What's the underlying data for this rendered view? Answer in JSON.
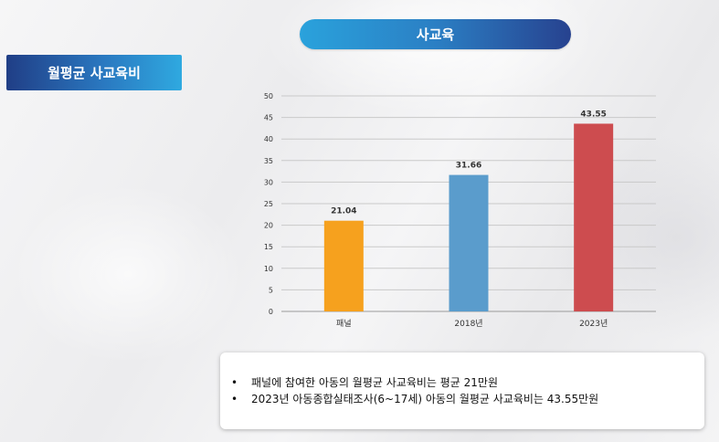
{
  "header": {
    "title": "사교육"
  },
  "side_tag": {
    "label": "월평균 사교육비"
  },
  "colors": {
    "bar_panel": "#f6a11e",
    "bar_2018": "#5a9ccc",
    "bar_2023": "#cd4c4f"
  },
  "chart_data": {
    "type": "bar",
    "categories": [
      "패널",
      "2018년",
      "2023년"
    ],
    "values": [
      21.04,
      31.66,
      43.55
    ],
    "data_labels": [
      "21.04",
      "31.66",
      "43.55"
    ],
    "title": "",
    "xlabel": "",
    "ylabel": "",
    "ylim": [
      0,
      50
    ],
    "y_ticks": [
      0,
      5,
      10,
      15,
      20,
      25,
      30,
      35,
      40,
      45,
      50
    ],
    "grid": true,
    "legend": "none"
  },
  "notes": [
    "패널에 참여한 아동의 월평균 사교육비는 평균 21만원",
    "2023년 아동종합실태조사(6~17세) 아동의 월평균 사교육비는 43.55만원"
  ]
}
